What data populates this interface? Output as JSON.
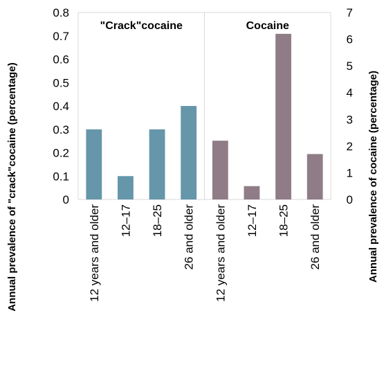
{
  "chart_data": {
    "type": "bar",
    "colors": {
      "crack": "#6596AA",
      "cocaine": "#907C86",
      "grid": "#D9D9D9"
    },
    "left_axis": {
      "label": "Annual prevalence of \"crack\"cocaine (percentage)",
      "ylim": [
        0,
        0.8
      ],
      "ticks": [
        "0",
        "0.1",
        "0.2",
        "0.3",
        "0.4",
        "0.5",
        "0.6",
        "0.7",
        "0.8"
      ]
    },
    "right_axis": {
      "label": "Annual prevalence of cocaine (percentage)",
      "ylim": [
        0,
        7
      ],
      "ticks": [
        "0",
        "1",
        "2",
        "3",
        "4",
        "5",
        "6",
        "7"
      ]
    },
    "panels": [
      {
        "title": "\"Crack\"cocaine",
        "axis": "left",
        "categories": [
          "12 years and older",
          "12–17",
          "18–25",
          "26 and older"
        ],
        "values": [
          0.3,
          0.1,
          0.3,
          0.4
        ]
      },
      {
        "title": "Cocaine",
        "axis": "right",
        "categories": [
          "12 years and older",
          "12–17",
          "18–25",
          "26 and older"
        ],
        "values": [
          2.2,
          0.5,
          6.2,
          1.7
        ]
      }
    ]
  }
}
